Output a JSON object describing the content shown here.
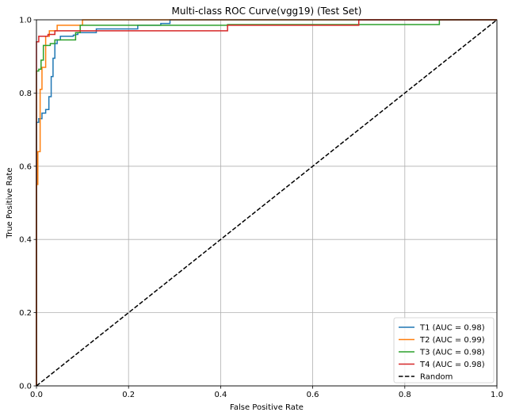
{
  "chart_data": {
    "type": "line",
    "title": "Multi-class ROC Curve(vgg19) (Test Set)",
    "xlabel": "False Positive Rate",
    "ylabel": "True Positive Rate",
    "xlim": [
      0.0,
      1.0
    ],
    "ylim": [
      0.0,
      1.0
    ],
    "xticks": [
      "0.0",
      "0.2",
      "0.4",
      "0.6",
      "0.8",
      "1.0"
    ],
    "yticks": [
      "0.0",
      "0.2",
      "0.4",
      "0.6",
      "0.8",
      "1.0"
    ],
    "grid": true,
    "legend_position": "lower-right",
    "series": [
      {
        "name": "T1 (AUC = 0.98)",
        "color": "#1f77b4",
        "dash": "solid",
        "x": [
          0.0,
          0.0,
          0.005,
          0.005,
          0.012,
          0.012,
          0.02,
          0.02,
          0.027,
          0.027,
          0.032,
          0.032,
          0.036,
          0.036,
          0.04,
          0.04,
          0.045,
          0.045,
          0.052,
          0.052,
          0.08,
          0.08,
          0.085,
          0.085,
          0.09,
          0.09,
          0.13,
          0.13,
          0.22,
          0.22,
          0.27,
          0.27,
          0.29,
          0.29,
          1.0
        ],
        "y": [
          0.0,
          0.72,
          0.72,
          0.73,
          0.73,
          0.745,
          0.745,
          0.755,
          0.755,
          0.79,
          0.79,
          0.845,
          0.845,
          0.895,
          0.895,
          0.935,
          0.935,
          0.945,
          0.945,
          0.955,
          0.955,
          0.958,
          0.958,
          0.96,
          0.96,
          0.965,
          0.965,
          0.975,
          0.975,
          0.985,
          0.985,
          0.99,
          0.99,
          1.0,
          1.0
        ]
      },
      {
        "name": "T2 (AUC = 0.99)",
        "color": "#ff7f0e",
        "dash": "solid",
        "x": [
          0.0,
          0.0,
          0.003,
          0.003,
          0.008,
          0.008,
          0.012,
          0.012,
          0.02,
          0.02,
          0.028,
          0.028,
          0.045,
          0.045,
          0.1,
          0.1,
          1.0
        ],
        "y": [
          0.0,
          0.55,
          0.55,
          0.64,
          0.64,
          0.81,
          0.81,
          0.87,
          0.87,
          0.955,
          0.955,
          0.97,
          0.97,
          0.985,
          0.985,
          1.0,
          1.0
        ]
      },
      {
        "name": "T3 (AUC = 0.98)",
        "color": "#2ca02c",
        "dash": "solid",
        "x": [
          0.0,
          0.0,
          0.005,
          0.005,
          0.01,
          0.01,
          0.015,
          0.015,
          0.03,
          0.03,
          0.04,
          0.04,
          0.085,
          0.085,
          0.095,
          0.095,
          0.415,
          0.415,
          0.875,
          0.875,
          1.0
        ],
        "y": [
          0.0,
          0.86,
          0.86,
          0.865,
          0.865,
          0.89,
          0.89,
          0.93,
          0.93,
          0.935,
          0.935,
          0.945,
          0.945,
          0.965,
          0.965,
          0.985,
          0.985,
          0.987,
          0.987,
          1.0,
          1.0
        ]
      },
      {
        "name": "T4 (AUC = 0.98)",
        "color": "#d62728",
        "dash": "solid",
        "x": [
          0.0,
          0.0,
          0.005,
          0.005,
          0.025,
          0.025,
          0.04,
          0.04,
          0.415,
          0.415,
          0.7,
          0.7,
          1.0
        ],
        "y": [
          0.0,
          0.94,
          0.94,
          0.955,
          0.955,
          0.96,
          0.96,
          0.97,
          0.97,
          0.985,
          0.985,
          1.0,
          1.0
        ]
      },
      {
        "name": "Random",
        "color": "#000000",
        "dash": "dashed",
        "x": [
          0.0,
          1.0
        ],
        "y": [
          0.0,
          1.0
        ]
      }
    ]
  }
}
